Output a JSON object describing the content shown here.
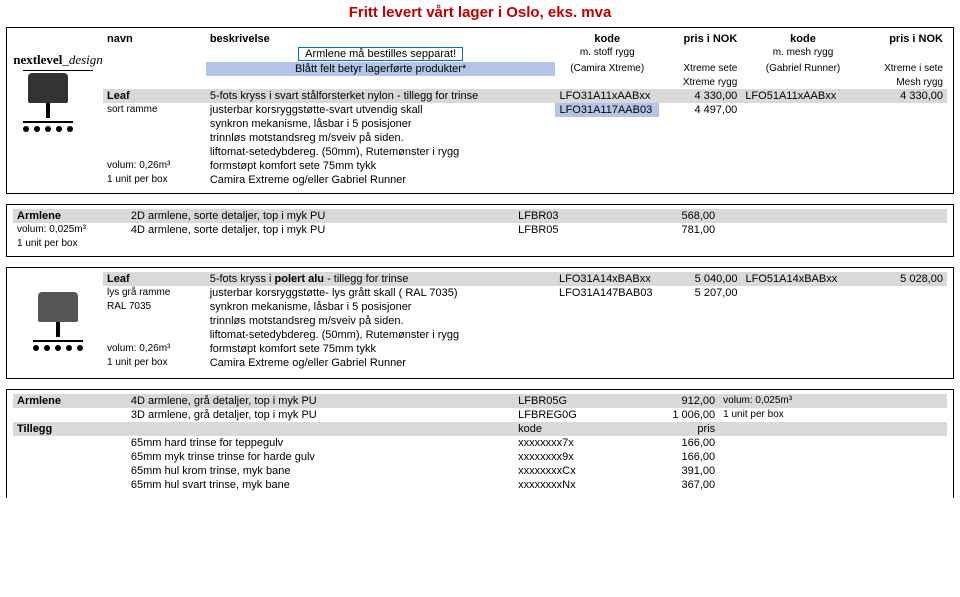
{
  "title": "Fritt levert vårt lager i Oslo, eks. mva",
  "brand": {
    "name": "nextlevel",
    "suffix": "_design"
  },
  "header": {
    "navn": "navn",
    "beskrivelse": "beskrivelse",
    "kode": "kode",
    "pris": "pris i NOK",
    "note1": "Armlene må bestilles sepparat!",
    "note2": "Blått felt betyr lagerførte produkter*",
    "sub1a": "m. stoff rygg",
    "sub1b": "(Camira Xtreme)",
    "sub2a": "Xtreme sete",
    "sub2b": "Xtreme rygg",
    "sub3a": "m. mesh rygg",
    "sub3b": "(Gabriel Runner)",
    "sub4a": "Xtreme i sete",
    "sub4b": "Mesh rygg"
  },
  "leaf1": {
    "name": "Leaf",
    "d0": "5-fots kryss i svart stålforsterket nylon - tillegg for trinse",
    "k1": "LFO31A11xAABxx",
    "p1": "4 330,00",
    "k2": "LFO51A11xAABxx",
    "p2": "4 330,00",
    "r1l": "sort ramme",
    "r1d": "justerbar korsryggstøtte-svart utvendig skall",
    "r1k": "LFO31A117AAB03",
    "r1p": "4 497,00",
    "r2": "synkron mekanisme, låsbar i 5 posisjoner",
    "r3": "trinnløs motstandsreg m/sveiv på siden.",
    "r4": "liftomat-setedybdereg. (50mm), Rutemønster i rygg",
    "r5l": "volum: 0,26m³",
    "r5d": "formstøpt komfort sete 75mm tykk",
    "r6l": "1 unit per box",
    "r6d": "Camira Extreme og/eller Gabriel Runner"
  },
  "arm1": {
    "name": "Armlene",
    "r1d": "2D armlene, sorte detaljer, top i myk PU",
    "r1k": "LFBR03",
    "r1p": "568,00",
    "r2l": "volum: 0,025m³",
    "r2d": "4D armlene, sorte detaljer, top i myk PU",
    "r2k": "LFBR05",
    "r2p": "781,00",
    "r3l": "1 unit per box"
  },
  "leaf2": {
    "name": "Leaf",
    "d0a": "5-fots kryss i ",
    "d0b": "polert alu",
    "d0c": " - tillegg for trinse",
    "k1": "LFO31A14xBABxx",
    "p1": "5 040,00",
    "k2": "LFO51A14xBABxx",
    "p2": "5 028,00",
    "r1l": "lys grå ramme",
    "r1d": "justerbar korsryggstøtte- lys grått skall ( RAL 7035)",
    "r1k": "LFO31A147BAB03",
    "r1p": "5 207,00",
    "r2l": "RAL 7035",
    "r2d": "synkron mekanisme, låsbar i 5 posisjoner",
    "r3": "trinnløs motstandsreg m/sveiv på siden.",
    "r4": "liftomat-setedybdereg. (50mm), Rutemønster i rygg",
    "r5l": "volum: 0,26m³",
    "r5d": "formstøpt komfort sete 75mm tykk",
    "r6l": "1 unit per box",
    "r6d": "Camira Extreme og/eller Gabriel Runner"
  },
  "arm2": {
    "name": "Armlene",
    "r1d": "4D armlene, grå detaljer, top i myk PU",
    "r1k": "LFBR05G",
    "r1p": "912,00",
    "r1n": "volum: 0,025m³",
    "r2d": "3D armlene, grå detaljer, top i myk PU",
    "r2k": "LFBREG0G",
    "r2p": "1 006,00",
    "r2n": "1 unit per box",
    "tname": "Tillegg",
    "tk": "kode",
    "tp": "pris",
    "t1d": "65mm hard trinse for teppegulv",
    "t1k": "xxxxxxxx7x",
    "t1p": "166,00",
    "t2d": "65mm myk trinse trinse for harde gulv",
    "t2k": "xxxxxxxx9x",
    "t2p": "166,00",
    "t3d": "65mm hul krom trinse, myk bane",
    "t3k": "xxxxxxxxCx",
    "t3p": "391,00",
    "t4d": "65mm hul svart trinse, myk bane",
    "t4k": "xxxxxxxxNx",
    "t4p": "367,00"
  }
}
